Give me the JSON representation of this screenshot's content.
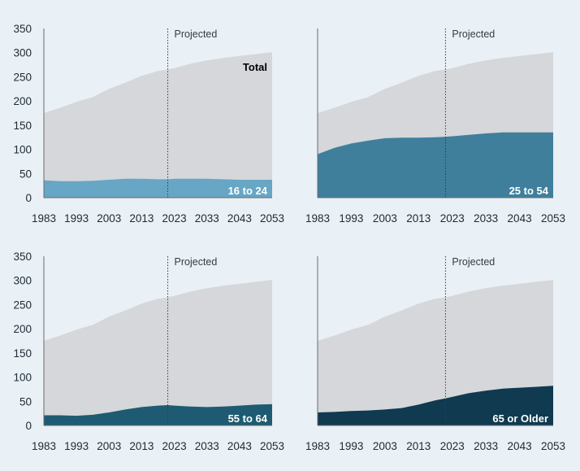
{
  "colors": {
    "background": "#e9f0f6",
    "total_area": "#d5d7da",
    "axis": "#6b6b6b",
    "projection_line": "#3a3a3a"
  },
  "chart_data": [
    {
      "type": "area",
      "panel": "top-left",
      "series_label": "16 to 24",
      "total_label": "Total",
      "projected_label": "Projected",
      "projection_start": 2021,
      "x": [
        1983,
        1988,
        1993,
        1998,
        2003,
        2008,
        2013,
        2018,
        2021,
        2023,
        2028,
        2033,
        2038,
        2043,
        2048,
        2053
      ],
      "total": [
        175,
        186,
        198,
        208,
        225,
        238,
        252,
        262,
        265,
        268,
        277,
        284,
        289,
        293,
        297,
        301
      ],
      "series": [
        {
          "name": "16 to 24",
          "color": "#67a6c4",
          "values": [
            36,
            34,
            34,
            35,
            37,
            39,
            39,
            38,
            38,
            39,
            39,
            39,
            38,
            37,
            37,
            37
          ]
        }
      ],
      "xticks": [
        "1983",
        "1993",
        "2003",
        "2013",
        "2023",
        "2033",
        "2043",
        "2053"
      ],
      "yticks": [
        "0",
        "50",
        "100",
        "150",
        "200",
        "250",
        "300",
        "350"
      ],
      "ylim": [
        0,
        350
      ],
      "xlim": [
        1983,
        2053
      ]
    },
    {
      "type": "area",
      "panel": "top-right",
      "series_label": "25 to 54",
      "projected_label": "Projected",
      "projection_start": 2021,
      "x": [
        1983,
        1988,
        1993,
        1998,
        2003,
        2008,
        2013,
        2018,
        2021,
        2023,
        2028,
        2033,
        2038,
        2043,
        2048,
        2053
      ],
      "total": [
        175,
        186,
        198,
        208,
        225,
        238,
        252,
        262,
        265,
        268,
        277,
        284,
        289,
        293,
        297,
        301
      ],
      "series": [
        {
          "name": "25 to 54",
          "color": "#3f7f9c",
          "values": [
            90,
            103,
            112,
            118,
            123,
            124,
            124,
            125,
            126,
            127,
            130,
            133,
            135,
            135,
            135,
            135
          ]
        }
      ],
      "xticks": [
        "1983",
        "1993",
        "2003",
        "2013",
        "2023",
        "2033",
        "2043",
        "2053"
      ],
      "yticks": [],
      "ylim": [
        0,
        350
      ],
      "xlim": [
        1983,
        2053
      ]
    },
    {
      "type": "area",
      "panel": "bottom-left",
      "series_label": "55 to 64",
      "projected_label": "Projected",
      "projection_start": 2021,
      "x": [
        1983,
        1988,
        1993,
        1998,
        2003,
        2008,
        2013,
        2018,
        2021,
        2023,
        2028,
        2033,
        2038,
        2043,
        2048,
        2053
      ],
      "total": [
        175,
        186,
        198,
        208,
        225,
        238,
        252,
        262,
        265,
        268,
        277,
        284,
        289,
        293,
        297,
        301
      ],
      "series": [
        {
          "name": "55 to 64",
          "color": "#1e5b72",
          "values": [
            21,
            21,
            20,
            22,
            27,
            33,
            38,
            41,
            42,
            41,
            39,
            38,
            39,
            41,
            43,
            44
          ]
        }
      ],
      "xticks": [
        "1983",
        "1993",
        "2003",
        "2013",
        "2023",
        "2033",
        "2043",
        "2053"
      ],
      "yticks": [
        "0",
        "50",
        "100",
        "150",
        "200",
        "250",
        "300",
        "350"
      ],
      "ylim": [
        0,
        350
      ],
      "xlim": [
        1983,
        2053
      ]
    },
    {
      "type": "area",
      "panel": "bottom-right",
      "series_label": "65 or Older",
      "projected_label": "Projected",
      "projection_start": 2021,
      "x": [
        1983,
        1988,
        1993,
        1998,
        2003,
        2008,
        2013,
        2018,
        2021,
        2023,
        2028,
        2033,
        2038,
        2043,
        2048,
        2053
      ],
      "total": [
        175,
        186,
        198,
        208,
        225,
        238,
        252,
        262,
        265,
        268,
        277,
        284,
        289,
        293,
        297,
        301
      ],
      "series": [
        {
          "name": "65 or Older",
          "color": "#0f3a50",
          "values": [
            27,
            28,
            30,
            31,
            33,
            36,
            43,
            52,
            56,
            59,
            67,
            72,
            76,
            78,
            80,
            82
          ]
        }
      ],
      "xticks": [
        "1983",
        "1993",
        "2003",
        "2013",
        "2023",
        "2033",
        "2043",
        "2053"
      ],
      "yticks": [],
      "ylim": [
        0,
        350
      ],
      "xlim": [
        1983,
        2053
      ]
    }
  ]
}
